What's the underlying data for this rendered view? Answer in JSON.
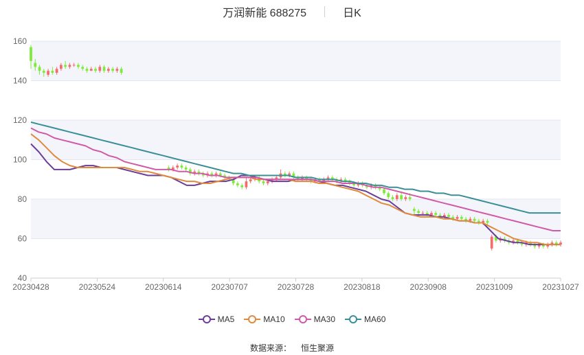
{
  "header": {
    "title": "万润新能 688275",
    "timeframe": "日K"
  },
  "source": {
    "label": "数据来源：",
    "value": "恒生聚源"
  },
  "colors": {
    "up": "#f36d6f",
    "down": "#7eea3a",
    "band": "#f4f5fb",
    "grid": "#e3e6f0",
    "axis_text": "#666666"
  },
  "chart_data": {
    "type": "candlestick",
    "title": "",
    "xlabel": "",
    "ylabel": "",
    "ylim": [
      40,
      160
    ],
    "yticks": [
      40,
      60,
      80,
      100,
      120,
      140,
      160
    ],
    "xticks": [
      "20230428",
      "20230524",
      "20230614",
      "20230707",
      "20230728",
      "20230818",
      "20230908",
      "20231009",
      "20231027"
    ],
    "legend_position": "bottom",
    "candles": [
      [
        157,
        150,
        158,
        146
      ],
      [
        149,
        147,
        151,
        145
      ],
      [
        147,
        145,
        148,
        143
      ],
      [
        145,
        144,
        146,
        142
      ],
      [
        143,
        145,
        146,
        142
      ],
      [
        145,
        144,
        147,
        143
      ],
      [
        144,
        146,
        147,
        143
      ],
      [
        146,
        148,
        149,
        145
      ],
      [
        148,
        147,
        150,
        146
      ],
      [
        147,
        148,
        149,
        146
      ],
      [
        148,
        148,
        149,
        147
      ],
      [
        148,
        147,
        149,
        146
      ],
      [
        147,
        146,
        148,
        145
      ],
      [
        146,
        145,
        147,
        144
      ],
      [
        145,
        146,
        147,
        145
      ],
      [
        146,
        145,
        147,
        144
      ],
      [
        145,
        147,
        148,
        144
      ],
      [
        147,
        145,
        148,
        144
      ],
      [
        145,
        146,
        147,
        144
      ],
      [
        146,
        145,
        147,
        144
      ],
      [
        145,
        146,
        147,
        144
      ],
      [
        146,
        144,
        147,
        143
      ],
      [
        null,
        null,
        null,
        null
      ],
      [
        null,
        null,
        null,
        null
      ],
      [
        null,
        null,
        null,
        null
      ],
      [
        null,
        null,
        null,
        null
      ],
      [
        null,
        null,
        null,
        null
      ],
      [
        null,
        null,
        null,
        null
      ],
      [
        null,
        null,
        null,
        null
      ],
      [
        null,
        null,
        null,
        null
      ],
      [
        null,
        null,
        null,
        null
      ],
      [
        null,
        null,
        null,
        null
      ],
      [
        96,
        95,
        97,
        94
      ],
      [
        95,
        96,
        97,
        94
      ],
      [
        96,
        97,
        98,
        95
      ],
      [
        97,
        96,
        98,
        95
      ],
      [
        96,
        95,
        97,
        94
      ],
      [
        95,
        93,
        96,
        92
      ],
      [
        93,
        94,
        95,
        92
      ],
      [
        94,
        93,
        95,
        92
      ],
      [
        93,
        92,
        94,
        91
      ],
      [
        92,
        93,
        94,
        91
      ],
      [
        93,
        92,
        94,
        91
      ],
      [
        92,
        93,
        94,
        91
      ],
      [
        93,
        92,
        94,
        91
      ],
      [
        92,
        91,
        93,
        90
      ],
      [
        91,
        90,
        92,
        89
      ],
      [
        90,
        88,
        91,
        87
      ],
      [
        88,
        87,
        89,
        86
      ],
      [
        87,
        86,
        88,
        85
      ],
      [
        86,
        89,
        91,
        85
      ],
      [
        89,
        90,
        91,
        88
      ],
      [
        90,
        91,
        92,
        89
      ],
      [
        91,
        89,
        92,
        88
      ],
      [
        89,
        88,
        90,
        87
      ],
      [
        88,
        89,
        90,
        87
      ],
      [
        89,
        90,
        91,
        88
      ],
      [
        90,
        91,
        92,
        89
      ],
      [
        91,
        93,
        95,
        90
      ],
      [
        93,
        92,
        94,
        91
      ],
      [
        92,
        93,
        94,
        91
      ],
      [
        93,
        91,
        94,
        90
      ],
      [
        91,
        90,
        92,
        89
      ],
      [
        90,
        91,
        92,
        89
      ],
      [
        91,
        90,
        92,
        89
      ],
      [
        90,
        89,
        91,
        88
      ],
      [
        89,
        90,
        91,
        88
      ],
      [
        90,
        89,
        91,
        88
      ],
      [
        89,
        90,
        91,
        88
      ],
      [
        90,
        91,
        92,
        89
      ],
      [
        91,
        90,
        92,
        89
      ],
      [
        90,
        89,
        91,
        88
      ],
      [
        89,
        90,
        91,
        88
      ],
      [
        90,
        89,
        91,
        88
      ],
      [
        89,
        88,
        90,
        87
      ],
      [
        88,
        87,
        89,
        86
      ],
      [
        87,
        88,
        89,
        86
      ],
      [
        88,
        87,
        89,
        86
      ],
      [
        87,
        86,
        88,
        85
      ],
      [
        86,
        87,
        88,
        85
      ],
      [
        87,
        86,
        88,
        85
      ],
      [
        86,
        85,
        87,
        84
      ],
      [
        85,
        83,
        86,
        82
      ],
      [
        83,
        81,
        84,
        80
      ],
      [
        81,
        80,
        82,
        79
      ],
      [
        80,
        82,
        83,
        79
      ],
      [
        82,
        80,
        84,
        79
      ],
      [
        80,
        81,
        82,
        79
      ],
      [
        81,
        80,
        83,
        79
      ],
      [
        75,
        74,
        76,
        72
      ],
      [
        74,
        73,
        75,
        72
      ],
      [
        73,
        73,
        74,
        72
      ],
      [
        73,
        72,
        74,
        71
      ],
      [
        72,
        73,
        74,
        71
      ],
      [
        73,
        72,
        74,
        71
      ],
      [
        72,
        71,
        73,
        70
      ],
      [
        71,
        72,
        73,
        70
      ],
      [
        72,
        71,
        73,
        70
      ],
      [
        71,
        70,
        72,
        69
      ],
      [
        70,
        71,
        72,
        69
      ],
      [
        71,
        70,
        72,
        69
      ],
      [
        70,
        69,
        71,
        68
      ],
      [
        69,
        70,
        71,
        68
      ],
      [
        70,
        69,
        71,
        68
      ],
      [
        69,
        68,
        70,
        67
      ],
      [
        68,
        69,
        70,
        67
      ],
      [
        69,
        68,
        70,
        67
      ],
      [
        55,
        61,
        62,
        54
      ],
      [
        61,
        59,
        62,
        58
      ],
      [
        59,
        60,
        61,
        58
      ],
      [
        60,
        59,
        61,
        58
      ],
      [
        59,
        58,
        60,
        57
      ],
      [
        58,
        59,
        60,
        57
      ],
      [
        59,
        58,
        60,
        57
      ],
      [
        58,
        57,
        59,
        56
      ],
      [
        57,
        58,
        59,
        56
      ],
      [
        58,
        57,
        59,
        56
      ],
      [
        57,
        56,
        58,
        55
      ],
      [
        56,
        57,
        58,
        55
      ],
      [
        57,
        56,
        58,
        55
      ],
      [
        56,
        57,
        58,
        55
      ],
      [
        57,
        58,
        59,
        56
      ],
      [
        58,
        57,
        59,
        56
      ],
      [
        57,
        58,
        59,
        56
      ]
    ],
    "candle_note": "each candle is [open, close, high, low]; null = no trading shown",
    "series": [
      {
        "name": "MA5",
        "color": "#6a3d9a",
        "values": [
          108,
          104,
          99,
          95,
          95,
          95,
          96,
          97,
          97,
          96,
          96,
          96,
          95,
          94,
          93,
          92,
          92,
          92,
          91,
          89,
          87,
          87,
          88,
          89,
          89,
          89,
          90,
          92,
          92,
          91,
          90,
          89,
          89,
          89,
          90,
          90,
          90,
          89,
          88,
          87,
          87,
          86,
          85,
          84,
          82,
          80,
          79,
          76,
          73,
          72,
          72,
          72,
          71,
          71,
          70,
          69,
          69,
          68,
          68,
          64,
          60,
          59,
          58,
          58,
          57,
          57,
          57,
          57,
          57
        ]
      },
      {
        "name": "MA10",
        "color": "#e08a3c",
        "values": [
          113,
          110,
          106,
          102,
          99,
          97,
          96,
          96,
          96,
          96,
          96,
          96,
          96,
          95,
          94,
          94,
          93,
          92,
          91,
          90,
          89,
          89,
          88,
          88,
          89,
          90,
          91,
          91,
          91,
          90,
          90,
          90,
          90,
          90,
          89,
          89,
          89,
          88,
          88,
          87,
          86,
          85,
          84,
          82,
          80,
          78,
          77,
          75,
          73,
          72,
          71,
          71,
          71,
          70,
          70,
          69,
          69,
          68,
          68,
          66,
          64,
          62,
          60,
          59,
          58,
          58,
          57,
          57,
          57
        ]
      },
      {
        "name": "MA30",
        "color": "#d05aa8",
        "values": [
          116,
          114,
          113,
          111,
          110,
          109,
          108,
          107,
          105,
          104,
          102,
          101,
          99,
          98,
          97,
          96,
          95,
          95,
          95,
          94,
          94,
          93,
          93,
          92,
          92,
          91,
          91,
          91,
          91,
          91,
          90,
          90,
          90,
          90,
          90,
          90,
          90,
          89,
          89,
          89,
          88,
          88,
          88,
          87,
          86,
          86,
          85,
          84,
          83,
          82,
          81,
          80,
          79,
          78,
          77,
          76,
          75,
          74,
          73,
          72,
          71,
          70,
          69,
          68,
          67,
          66,
          65,
          64,
          64
        ]
      },
      {
        "name": "MA60",
        "color": "#3a8f97",
        "values": [
          119,
          118,
          117,
          116,
          115,
          114,
          113,
          112,
          111,
          110,
          109,
          108,
          107,
          106,
          105,
          104,
          103,
          102,
          101,
          100,
          99,
          98,
          97,
          96,
          95,
          94,
          93,
          93,
          92,
          92,
          92,
          92,
          92,
          92,
          91,
          91,
          91,
          90,
          90,
          90,
          89,
          89,
          88,
          88,
          87,
          87,
          86,
          86,
          85,
          85,
          84,
          84,
          83,
          83,
          82,
          82,
          81,
          80,
          79,
          78,
          77,
          76,
          75,
          74,
          73,
          73,
          73,
          73,
          73
        ]
      }
    ]
  }
}
